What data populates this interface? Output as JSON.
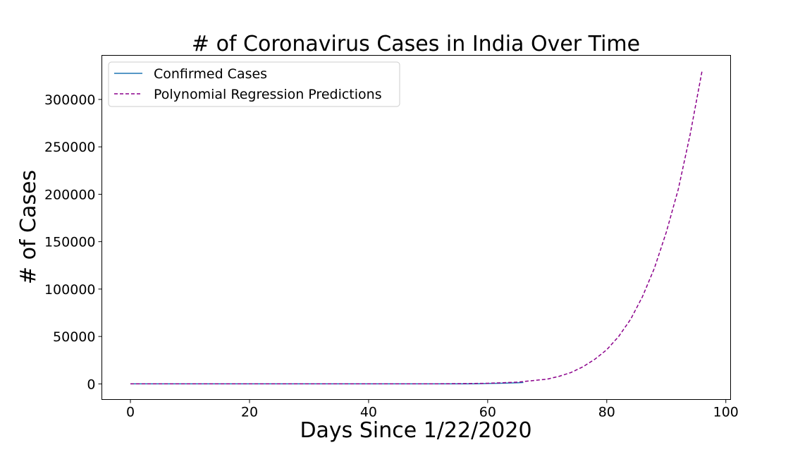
{
  "chart_data": {
    "type": "line",
    "title": "# of Coronavirus Cases in India Over Time",
    "xlabel": "Days Since 1/22/2020",
    "ylabel": "# of Cases",
    "xlim": [
      -4.8,
      100.8
    ],
    "ylim": [
      -16500,
      346500
    ],
    "xticks": [
      0,
      20,
      40,
      60,
      80,
      100
    ],
    "yticks": [
      0,
      50000,
      100000,
      150000,
      200000,
      250000,
      300000
    ],
    "grid": false,
    "legend_position": "top-left",
    "series": [
      {
        "name": "Confirmed Cases",
        "color": "#1f77b4",
        "style": "solid",
        "x": [
          0,
          5,
          10,
          15,
          20,
          25,
          30,
          35,
          40,
          45,
          50,
          52,
          54,
          56,
          58,
          60,
          62,
          63,
          64,
          65,
          66
        ],
        "y": [
          0,
          0,
          0,
          3,
          3,
          3,
          3,
          3,
          3,
          5,
          30,
          43,
          60,
          110,
          190,
          400,
          600,
          800,
          1000,
          1200,
          1400
        ]
      },
      {
        "name": "Polynomial Regression Predictions",
        "color": "#8b008b",
        "style": "dashed",
        "x": [
          0,
          10,
          20,
          30,
          40,
          50,
          55,
          60,
          65,
          70,
          72,
          74,
          76,
          78,
          80,
          82,
          84,
          86,
          88,
          90,
          92,
          94,
          96
        ],
        "y": [
          0,
          0,
          0,
          0,
          0,
          0,
          200,
          600,
          1800,
          5000,
          8000,
          12000,
          18000,
          26000,
          36000,
          50000,
          68000,
          92000,
          122000,
          160000,
          205000,
          263000,
          330000
        ]
      }
    ]
  }
}
